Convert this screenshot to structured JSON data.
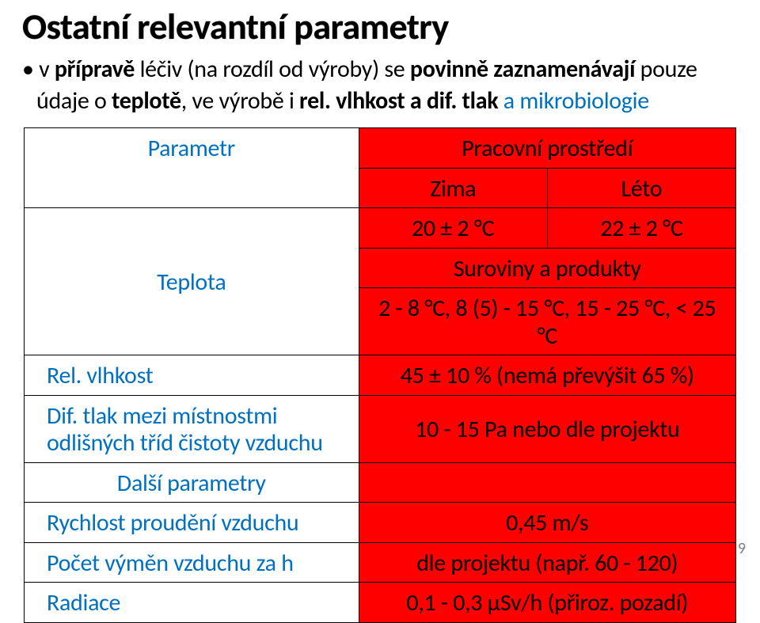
{
  "title": "Ostatní relevantní parametry",
  "bullet": {
    "lead": "• v ",
    "b1": "přípravě",
    "mid1": " léčiv (na rozdíl od výroby) se ",
    "b2": "povinně zaznamenávají",
    "mid2": " pouze údaje o ",
    "b3": "teplotě",
    "mid3": ", ve výrobě i ",
    "b4": "rel. vlhkost a dif. tlak",
    "blue": " a mikrobiologie"
  },
  "table": {
    "parametr": "Parametr",
    "pracovni": "Pracovní prostředí",
    "zima": "Zima",
    "leto": "Léto",
    "teplota": "Teplota",
    "t_zima": "20 ± 2 °C",
    "t_leto": "22 ± 2 °C",
    "suroviny_hdr": "Suroviny a produkty",
    "suroviny_val": "2 - 8 °C, 8 (5) - 15 °C, 15 - 25 °C, < 25 °C",
    "relvlhkost": "Rel. vlhkost",
    "relvlhkost_val": "45 ± 10 % (nemá převýšit 65 %)",
    "diftlak": "Dif. tlak mezi místnostmi odlišných tříd čistoty vzduchu",
    "diftlak_val": "10 - 15 Pa nebo dle projektu",
    "dalsi": "Další parametry",
    "rychlost": "Rychlost proudění vzduchu",
    "rychlost_val": "0,45 m/s",
    "vymen": "Počet výměn vzduchu za h",
    "vymen_val": "dle projektu (např. 60 - 120)",
    "radiace": "Radiace",
    "radiace_val": "0,1 - 0,3 μSv/h (přiroz. pozadí)"
  },
  "page": "9",
  "colors": {
    "blue": "#0070c0",
    "red": "#ff0000",
    "text": "#000000",
    "bg": "#ffffff",
    "pagenum": "#808080"
  }
}
